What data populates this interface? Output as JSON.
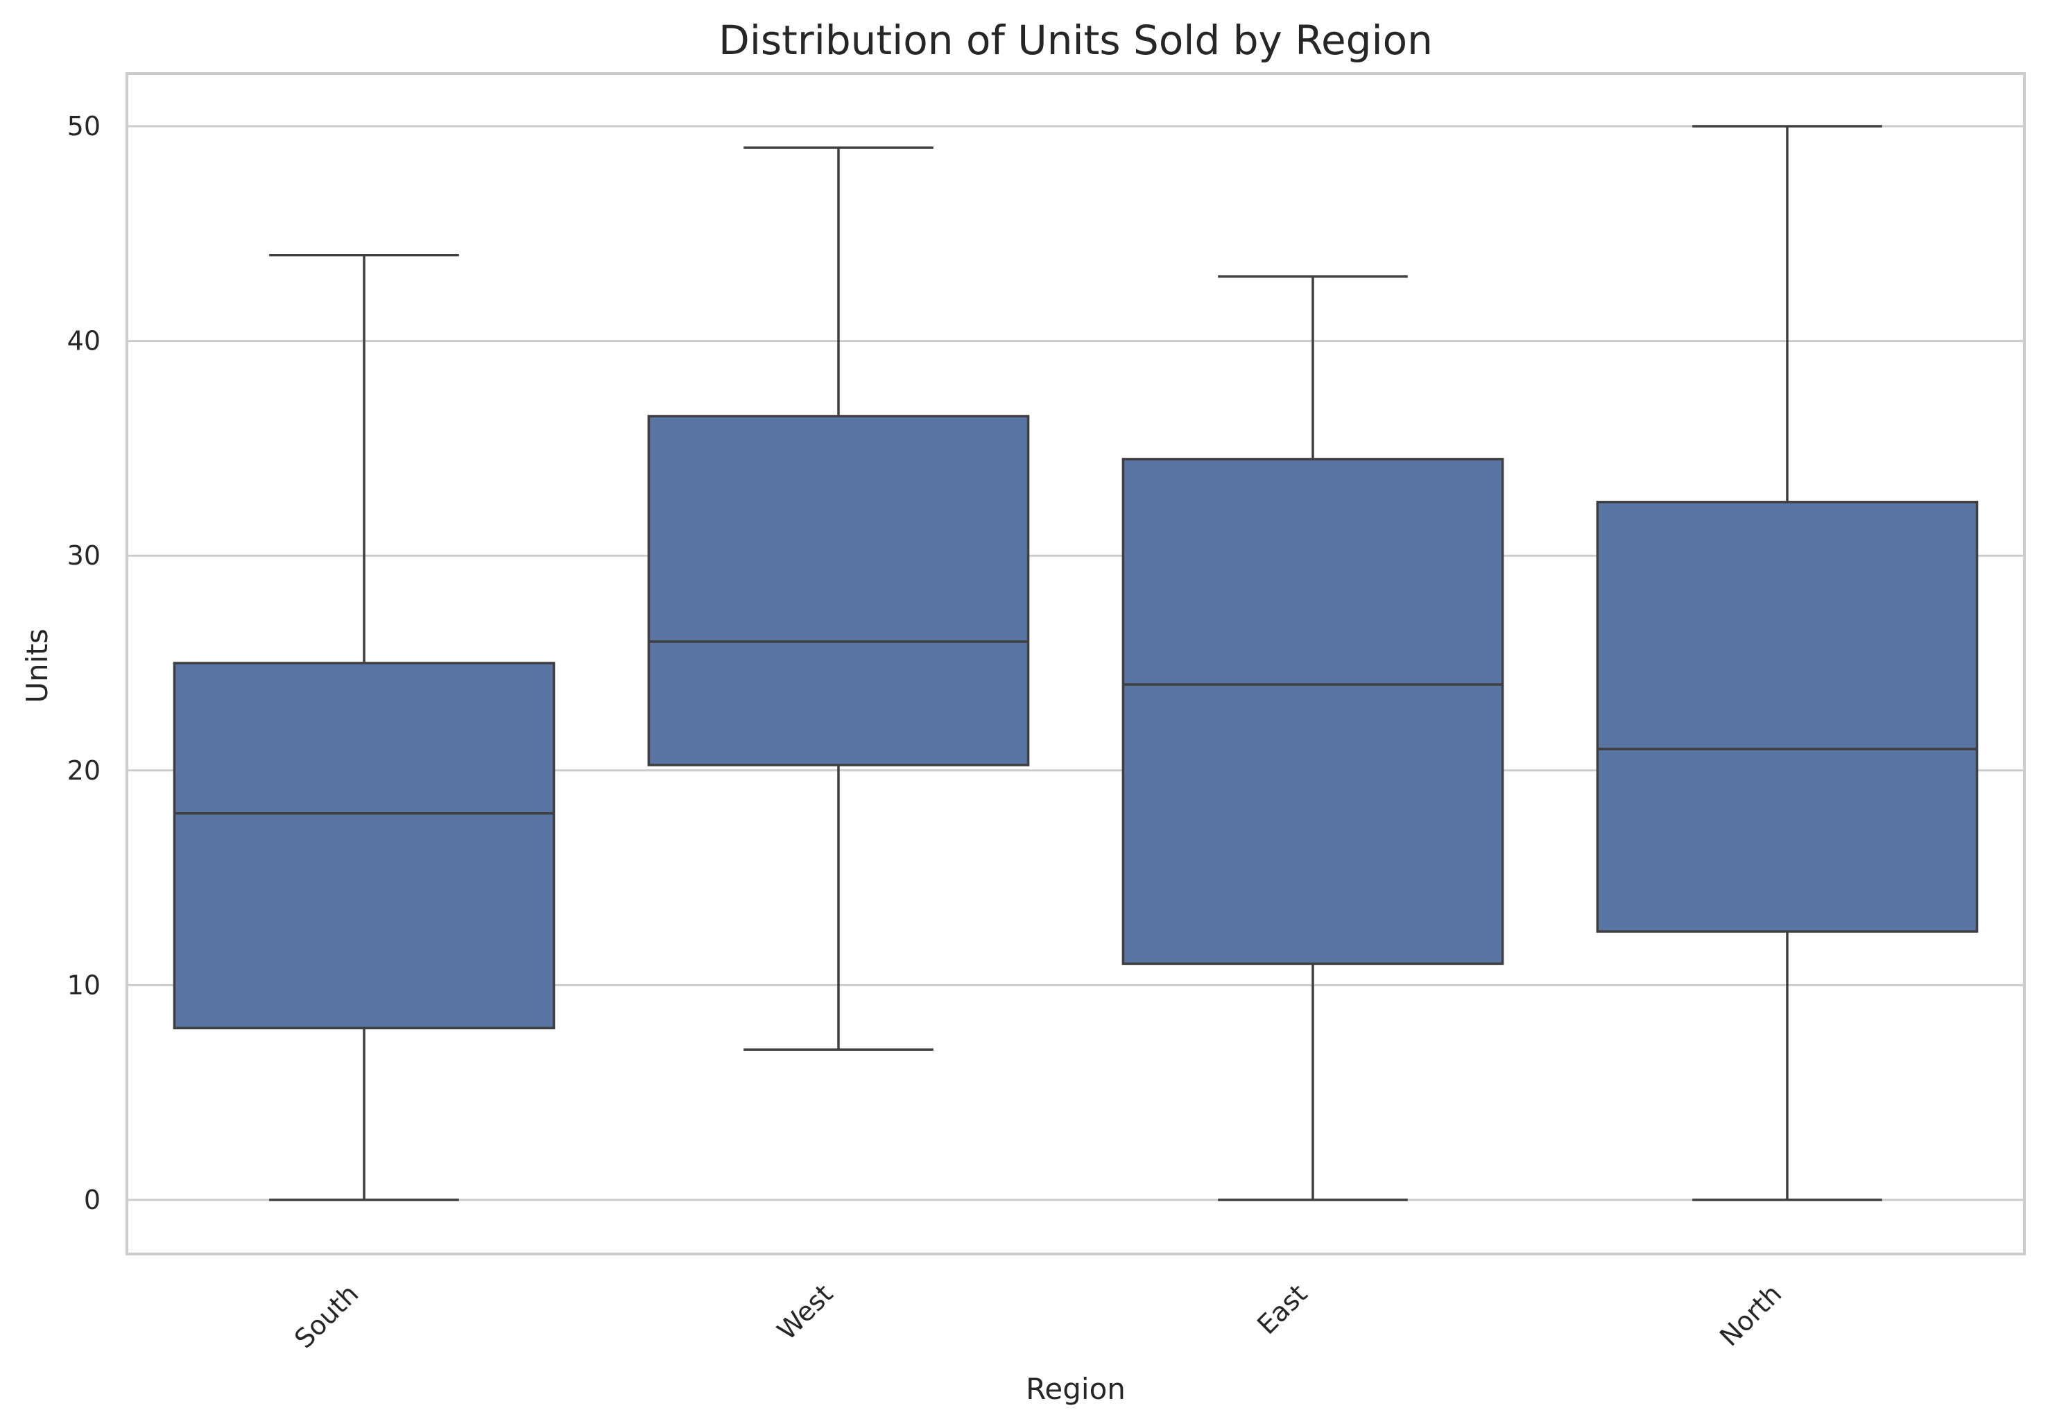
{
  "chart_data": {
    "type": "box",
    "title": "Distribution of Units Sold by Region",
    "xlabel": "Region",
    "ylabel": "Units",
    "ylim": [
      -2.5,
      52.5
    ],
    "yticks": [
      0,
      10,
      20,
      30,
      40,
      50
    ],
    "grid": true,
    "colors": {
      "box_fill": "#5875a4",
      "line": "#3f3f3f",
      "grid": "#cccccc",
      "text": "#262626"
    },
    "categories": [
      "South",
      "West",
      "East",
      "North"
    ],
    "boxes": [
      {
        "category": "South",
        "whisker_low": 0,
        "q1": 8,
        "median": 18,
        "q3": 25,
        "whisker_high": 44
      },
      {
        "category": "West",
        "whisker_low": 7,
        "q1": 20.25,
        "median": 26,
        "q3": 36.5,
        "whisker_high": 49
      },
      {
        "category": "East",
        "whisker_low": 0,
        "q1": 11,
        "median": 24,
        "q3": 34.5,
        "whisker_high": 43
      },
      {
        "category": "North",
        "whisker_low": 0,
        "q1": 12.5,
        "median": 21,
        "q3": 32.5,
        "whisker_high": 50
      }
    ]
  }
}
